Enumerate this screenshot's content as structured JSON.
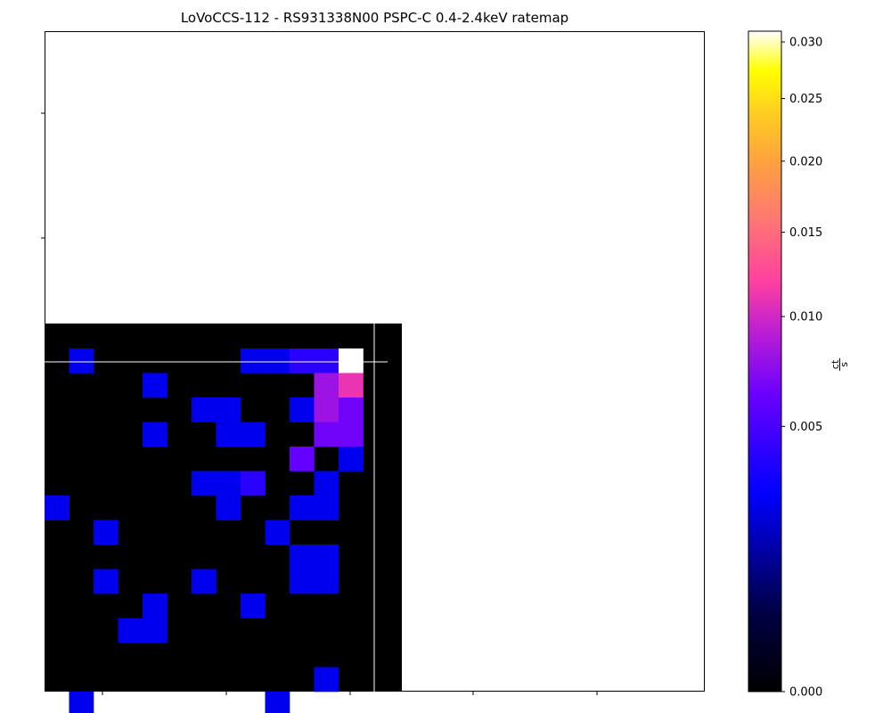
{
  "chart_data": {
    "type": "heatmap",
    "title": "LoVoCCS-112 - RS931338N00 PSPC-C 0.4-2.4keV ratemap",
    "colormap": "gnuplot2",
    "colorbar": {
      "scale": "sqrt",
      "range": [
        0.0,
        0.031
      ],
      "ticks": [
        0.0,
        0.005,
        0.01,
        0.015,
        0.02,
        0.025,
        0.03
      ],
      "tick_labels": [
        "0.000",
        "0.005",
        "0.010",
        "0.015",
        "0.020",
        "0.025",
        "0.030"
      ],
      "label_numerator": "ct",
      "label_denominator": "s"
    },
    "grid": {
      "cols": 14,
      "rows": 15,
      "row_order": "top-to-bottom",
      "values": [
        [
          0,
          0.0025,
          0,
          0,
          0,
          0,
          0,
          0,
          0.0025,
          0.0025,
          0.004,
          0.004,
          0.031,
          0
        ],
        [
          0,
          0,
          0,
          0,
          0.0025,
          0,
          0,
          0,
          0,
          0,
          0,
          0.008,
          0.011,
          0
        ],
        [
          0,
          0,
          0,
          0,
          0,
          0,
          0.0025,
          0.0025,
          0,
          0,
          0.0025,
          0.008,
          0.0065,
          0
        ],
        [
          0,
          0,
          0,
          0,
          0.0025,
          0,
          0,
          0.0025,
          0.0025,
          0,
          0,
          0.0065,
          0.0065,
          0
        ],
        [
          0,
          0,
          0,
          0,
          0,
          0,
          0,
          0,
          0,
          0,
          0.006,
          0,
          0.0025,
          0
        ],
        [
          0,
          0,
          0,
          0,
          0,
          0,
          0.0025,
          0.0025,
          0.004,
          0,
          0,
          0.0025,
          0,
          0
        ],
        [
          0.0025,
          0,
          0,
          0,
          0,
          0,
          0,
          0.0025,
          0,
          0,
          0.0025,
          0.0025,
          0,
          0
        ],
        [
          0,
          0,
          0.0025,
          0,
          0,
          0,
          0,
          0,
          0,
          0.0025,
          0,
          0,
          0,
          0
        ],
        [
          0,
          0,
          0,
          0,
          0,
          0,
          0,
          0,
          0,
          0,
          0.0025,
          0.0025,
          0,
          0
        ],
        [
          0,
          0,
          0.0025,
          0,
          0,
          0,
          0.0025,
          0,
          0,
          0,
          0.0025,
          0.0025,
          0,
          0
        ],
        [
          0,
          0,
          0,
          0,
          0.0025,
          0,
          0,
          0,
          0.0025,
          0,
          0,
          0,
          0,
          0
        ],
        [
          0,
          0,
          0,
          0.0025,
          0.0025,
          0,
          0,
          0,
          0,
          0,
          0,
          0,
          0,
          0
        ],
        [
          0,
          0,
          0,
          0,
          0,
          0,
          0,
          0,
          0,
          0,
          0,
          0,
          0,
          0
        ],
        [
          0,
          0,
          0,
          0,
          0,
          0,
          0,
          0,
          0,
          0,
          0,
          0.0025,
          0,
          0
        ],
        [
          0,
          0.0025,
          0,
          0,
          0,
          0,
          0,
          0,
          0,
          0.0025,
          0,
          0,
          0,
          0
        ]
      ]
    },
    "overlay_lines": "white crosshair lines",
    "axis_tick_labels_shown": false
  }
}
